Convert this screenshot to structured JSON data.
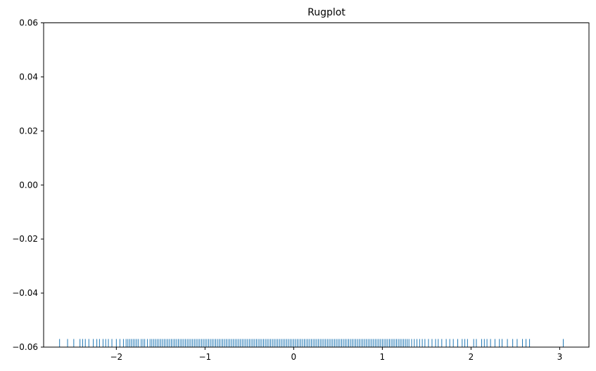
{
  "chart_data": {
    "type": "rugplot",
    "title": "Rugplot",
    "xlabel": "",
    "ylabel": "",
    "xlim": [
      -2.82,
      3.33
    ],
    "ylim": [
      -0.06,
      0.06
    ],
    "grid": false,
    "xticks": [
      -2,
      -1,
      0,
      1,
      2,
      3
    ],
    "xtick_labels": [
      "−2",
      "−1",
      "0",
      "1",
      "2",
      "3"
    ],
    "yticks": [
      -0.06,
      -0.04,
      -0.02,
      0.0,
      0.02,
      0.04,
      0.06
    ],
    "ytick_labels": [
      "−0.06",
      "−0.04",
      "−0.02",
      "0.00",
      "0.02",
      "0.04",
      "0.06"
    ],
    "rug_color": "#1f77b4",
    "rug_height_fraction": 0.025,
    "values": [
      -2.64,
      -2.55,
      -2.48,
      -2.41,
      -2.38,
      -2.35,
      -2.31,
      -2.26,
      -2.22,
      -2.19,
      -2.15,
      -2.12,
      -2.09,
      -2.05,
      -2.0,
      -1.96,
      -1.92,
      -1.89,
      -1.87,
      -1.85,
      -1.83,
      -1.81,
      -1.79,
      -1.77,
      -1.75,
      -1.72,
      -1.7,
      -1.68,
      -1.65,
      -1.62,
      -1.6,
      -1.58,
      -1.56,
      -1.54,
      -1.52,
      -1.5,
      -1.48,
      -1.46,
      -1.44,
      -1.42,
      -1.4,
      -1.38,
      -1.36,
      -1.34,
      -1.32,
      -1.3,
      -1.28,
      -1.26,
      -1.24,
      -1.22,
      -1.2,
      -1.18,
      -1.16,
      -1.14,
      -1.12,
      -1.1,
      -1.08,
      -1.06,
      -1.04,
      -1.02,
      -1.0,
      -0.98,
      -0.96,
      -0.94,
      -0.92,
      -0.9,
      -0.88,
      -0.86,
      -0.84,
      -0.82,
      -0.8,
      -0.78,
      -0.76,
      -0.74,
      -0.72,
      -0.7,
      -0.68,
      -0.66,
      -0.64,
      -0.62,
      -0.6,
      -0.58,
      -0.56,
      -0.54,
      -0.52,
      -0.5,
      -0.48,
      -0.46,
      -0.44,
      -0.42,
      -0.4,
      -0.38,
      -0.36,
      -0.34,
      -0.32,
      -0.3,
      -0.28,
      -0.26,
      -0.24,
      -0.22,
      -0.2,
      -0.18,
      -0.16,
      -0.14,
      -0.12,
      -0.1,
      -0.08,
      -0.06,
      -0.04,
      -0.02,
      0.0,
      0.02,
      0.04,
      0.06,
      0.08,
      0.1,
      0.12,
      0.14,
      0.16,
      0.18,
      0.2,
      0.22,
      0.24,
      0.26,
      0.28,
      0.3,
      0.32,
      0.34,
      0.36,
      0.38,
      0.4,
      0.42,
      0.44,
      0.46,
      0.48,
      0.5,
      0.52,
      0.54,
      0.56,
      0.58,
      0.6,
      0.62,
      0.64,
      0.66,
      0.68,
      0.7,
      0.72,
      0.74,
      0.76,
      0.78,
      0.8,
      0.82,
      0.84,
      0.86,
      0.88,
      0.9,
      0.92,
      0.94,
      0.96,
      0.98,
      1.0,
      1.02,
      1.04,
      1.06,
      1.08,
      1.1,
      1.12,
      1.14,
      1.16,
      1.18,
      1.2,
      1.22,
      1.24,
      1.26,
      1.28,
      1.3,
      1.33,
      1.36,
      1.39,
      1.42,
      1.45,
      1.48,
      1.52,
      1.56,
      1.6,
      1.63,
      1.67,
      1.72,
      1.76,
      1.8,
      1.85,
      1.9,
      1.93,
      1.96,
      2.03,
      2.06,
      2.12,
      2.15,
      2.18,
      2.22,
      2.27,
      2.32,
      2.35,
      2.41,
      2.47,
      2.52,
      2.58,
      2.62,
      2.66,
      3.04
    ]
  }
}
